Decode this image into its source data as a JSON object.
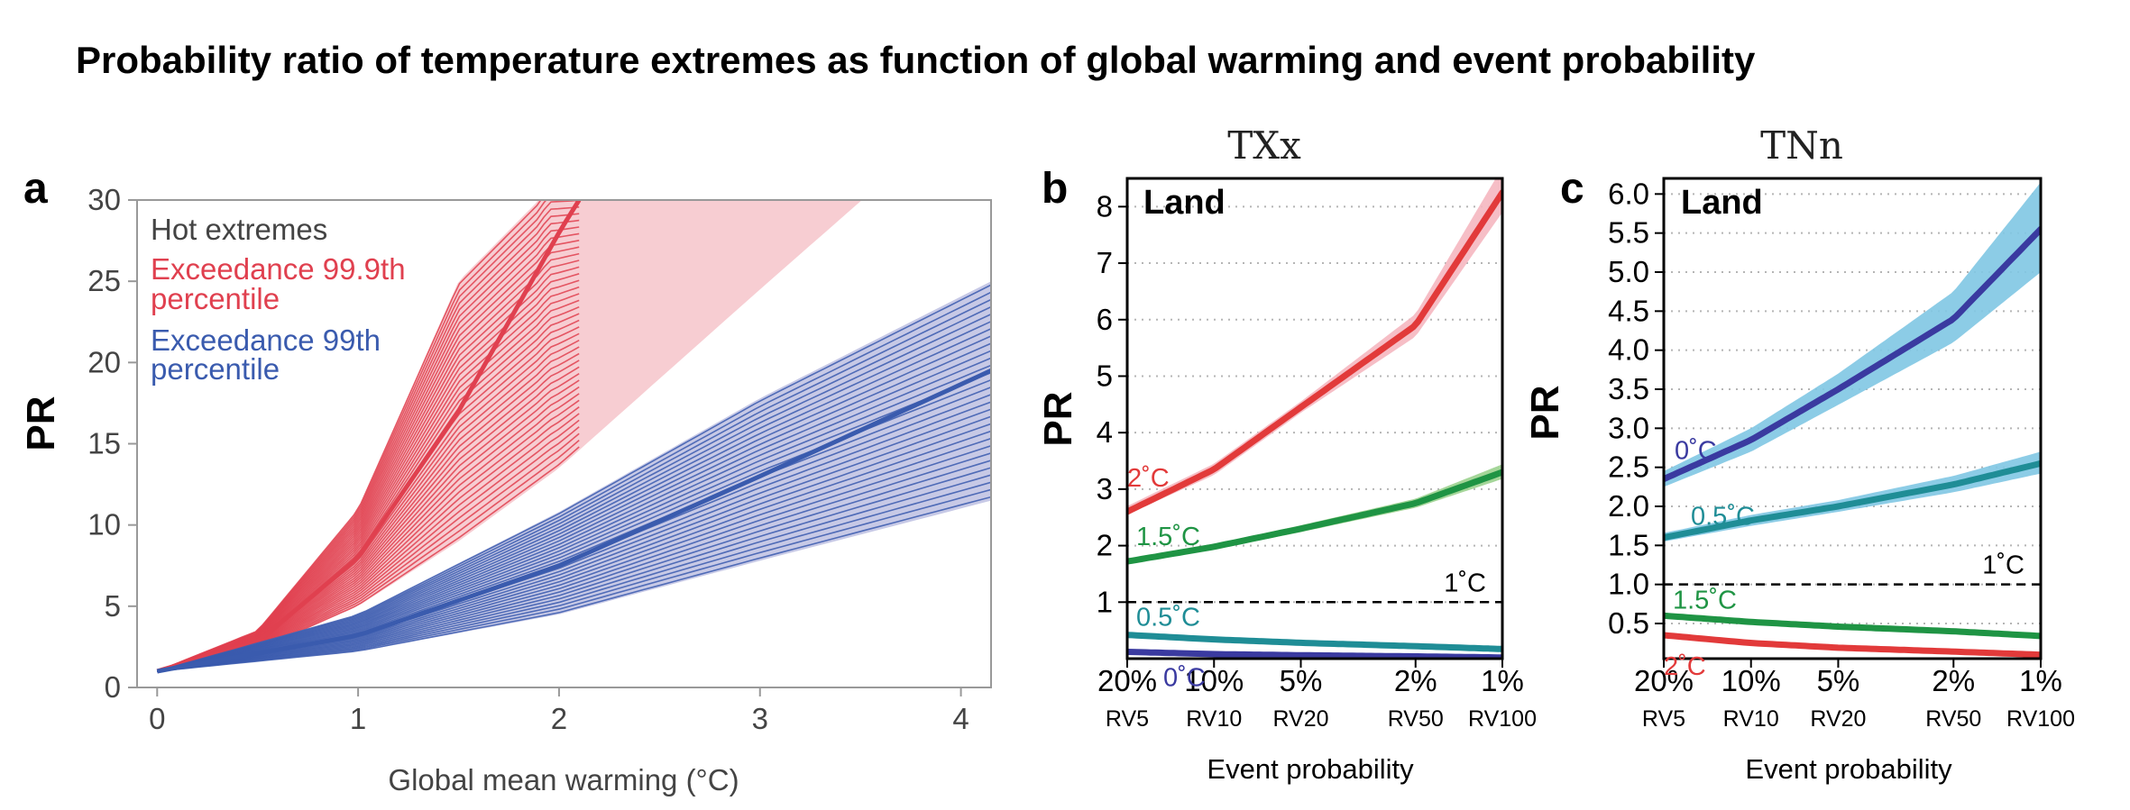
{
  "title": "Probability ratio of temperature extremes as function of global warming and event probability",
  "chart_data": [
    {
      "id": "a",
      "panel_label": "a",
      "type": "line",
      "xlabel": "Global mean warming (°C)",
      "ylabel": "PR",
      "xlim": [
        -0.1,
        4.15
      ],
      "ylim": [
        0,
        30
      ],
      "xticks": [
        "0",
        "1",
        "2",
        "3",
        "4"
      ],
      "yticks": [
        "0",
        "5",
        "10",
        "15",
        "20",
        "25",
        "30"
      ],
      "legend": {
        "title": "Hot extremes",
        "entries": [
          {
            "label_line1": "Exceedance 99.9th",
            "label_line2": "percentile",
            "color": "#e0404f"
          },
          {
            "label_line1": "Exceedance 99th",
            "label_line2": "percentile",
            "color": "#3a5bae"
          }
        ]
      },
      "series": [
        {
          "color": "#e0404f",
          "band_color": "#f7cdd2",
          "ensemble_members": 40,
          "x": [
            0,
            0.5,
            1.0,
            1.5,
            2.0,
            2.1
          ],
          "y": [
            1,
            2.8,
            8,
            17,
            28,
            30
          ],
          "band_low": {
            "x": [
              0,
              0.5,
              1.0,
              1.5,
              2.0,
              2.5,
              3.0,
              3.6
            ],
            "y": [
              1,
              2.3,
              5,
              9,
              13.5,
              19,
              24.5,
              31
            ]
          },
          "band_high": {
            "x": [
              0,
              0.5,
              1.0,
              1.5,
              1.9,
              1.95
            ],
            "y": [
              1,
              3.5,
              11,
              25,
              30,
              31
            ]
          }
        },
        {
          "color": "#3a5bae",
          "band_color": "#c7c9e6",
          "ensemble_members": 30,
          "x": [
            0,
            1,
            2,
            3,
            4.15
          ],
          "y": [
            1,
            3.2,
            7.5,
            13,
            19.5
          ],
          "band_low": {
            "x": [
              0,
              1,
              2,
              3,
              4.15
            ],
            "y": [
              1,
              2.2,
              4.5,
              7.8,
              11.5
            ]
          },
          "band_high": {
            "x": [
              0,
              1,
              2,
              3,
              4.15
            ],
            "y": [
              1,
              4.5,
              10.8,
              17.8,
              25
            ]
          }
        }
      ]
    },
    {
      "id": "b",
      "panel_label": "b",
      "header": "TXx",
      "type": "line",
      "inset_label": "Land",
      "xlabel": "Event probability",
      "ylabel": "PR",
      "ylim": [
        0,
        8.5
      ],
      "yticks": [
        "1",
        "2",
        "3",
        "4",
        "5",
        "6",
        "7",
        "8"
      ],
      "x": [
        "20%",
        "10%",
        "5%",
        "2%",
        "1%"
      ],
      "x_sublabels": [
        "RV5",
        "RV10",
        "RV20",
        "RV50",
        "RV100"
      ],
      "reference": {
        "y": 1,
        "label": "1˚C"
      },
      "series": [
        {
          "name": "2˚C",
          "color": "#e23a3a",
          "band_color": "#f5b7c0",
          "values": [
            2.6,
            3.35,
            4.45,
            5.9,
            8.25
          ],
          "band_low": [
            2.55,
            3.25,
            4.35,
            5.7,
            7.9
          ],
          "band_high": [
            2.7,
            3.45,
            4.55,
            6.1,
            8.7
          ]
        },
        {
          "name": "1.5˚C",
          "color": "#1f9444",
          "band_color": "#9bd28e",
          "values": [
            1.72,
            1.98,
            2.3,
            2.75,
            3.3
          ],
          "band_low": [
            1.68,
            1.93,
            2.24,
            2.67,
            3.18
          ],
          "band_high": [
            1.76,
            2.03,
            2.36,
            2.83,
            3.44
          ]
        },
        {
          "name": "0.5˚C",
          "color": "#1f8d96",
          "values": [
            0.42,
            0.34,
            0.28,
            0.22,
            0.17
          ]
        },
        {
          "name": "0˚C",
          "color": "#3a3aa0",
          "values": [
            0.12,
            0.08,
            0.06,
            0.04,
            0.02
          ]
        }
      ]
    },
    {
      "id": "c",
      "panel_label": "c",
      "header": "TNn",
      "type": "line",
      "inset_label": "Land",
      "xlabel": "Event probability",
      "ylabel": "PR",
      "ylim": [
        0.05,
        6.2
      ],
      "yticks": [
        "0.5",
        "1.0",
        "1.5",
        "2.0",
        "2.5",
        "3.0",
        "3.5",
        "4.0",
        "4.5",
        "5.0",
        "5.5",
        "6.0"
      ],
      "x": [
        "20%",
        "10%",
        "5%",
        "2%",
        "1%"
      ],
      "x_sublabels": [
        "RV5",
        "RV10",
        "RV20",
        "RV50",
        "RV100"
      ],
      "reference": {
        "y": 1,
        "label": "1˚C"
      },
      "series": [
        {
          "name": "0˚C",
          "color": "#3a3aa0",
          "band_color": "#7fc6e3",
          "values": [
            2.35,
            2.85,
            3.5,
            4.4,
            5.55
          ],
          "band_low": [
            2.25,
            2.7,
            3.3,
            4.1,
            5.0
          ],
          "band_high": [
            2.45,
            3.0,
            3.7,
            4.75,
            6.15
          ]
        },
        {
          "name": "0.5˚C",
          "color": "#1f8d96",
          "band_color": "#7fc6e3",
          "values": [
            1.6,
            1.82,
            2.0,
            2.28,
            2.55
          ],
          "band_low": [
            1.55,
            1.75,
            1.93,
            2.18,
            2.42
          ],
          "band_high": [
            1.66,
            1.89,
            2.08,
            2.39,
            2.7
          ]
        },
        {
          "name": "1.5˚C",
          "color": "#1f9444",
          "values": [
            0.6,
            0.52,
            0.46,
            0.4,
            0.34
          ]
        },
        {
          "name": "2˚C",
          "color": "#e23a3a",
          "values": [
            0.35,
            0.25,
            0.19,
            0.14,
            0.1
          ]
        }
      ]
    }
  ]
}
